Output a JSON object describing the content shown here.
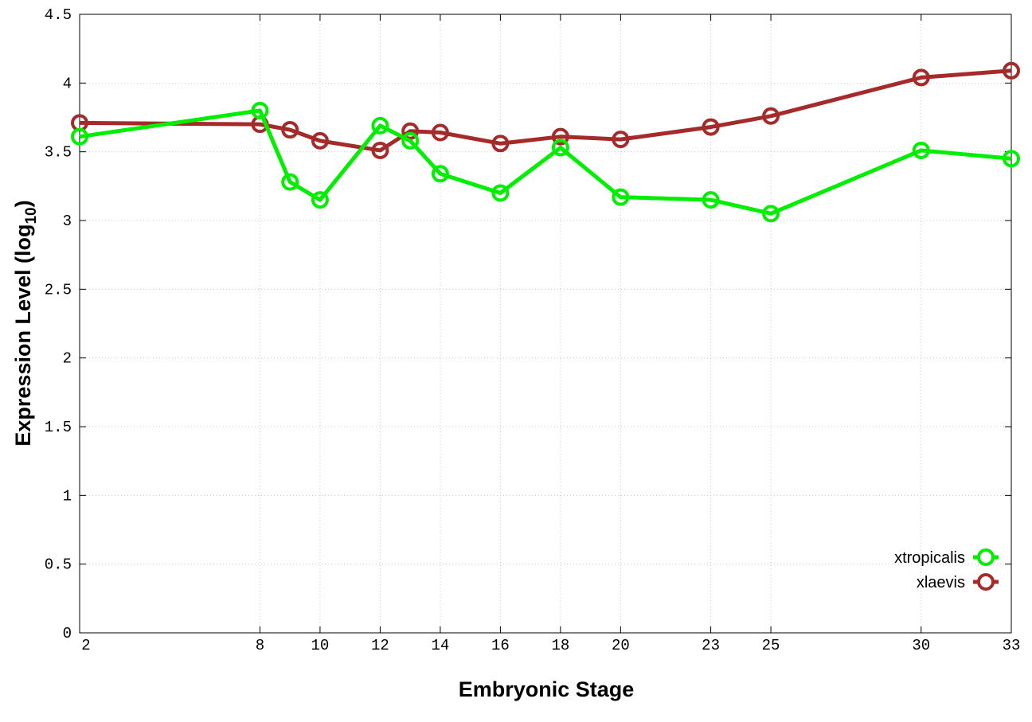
{
  "chart_data": {
    "type": "line",
    "xlabel": "Embryonic Stage",
    "ylabel_main": "Expression Level (log",
    "ylabel_sub": "10",
    "ylabel_end": ")",
    "xlim": [
      2,
      33
    ],
    "ylim": [
      0,
      4.5
    ],
    "x_ticks": [
      2,
      8,
      10,
      12,
      14,
      16,
      18,
      20,
      23,
      25,
      30,
      33
    ],
    "y_ticks": [
      "0",
      "0.5",
      "1",
      "1.5",
      "2",
      "2.5",
      "3",
      "3.5",
      "4",
      "4.5"
    ],
    "grid": true,
    "legend_position": "bottom-right",
    "x": [
      2,
      8,
      9,
      10,
      12,
      13,
      14,
      16,
      18,
      20,
      23,
      25,
      30,
      33
    ],
    "series": [
      {
        "name": "xtropicalis",
        "color": "#00ee00",
        "values": [
          3.61,
          3.8,
          3.28,
          3.15,
          3.69,
          3.58,
          3.34,
          3.2,
          3.53,
          3.17,
          3.15,
          3.05,
          3.51,
          3.45
        ]
      },
      {
        "name": "xlaevis",
        "color": "#a52a2a",
        "values": [
          3.71,
          3.7,
          3.66,
          3.58,
          3.51,
          3.65,
          3.64,
          3.56,
          3.61,
          3.59,
          3.68,
          3.76,
          4.04,
          4.09
        ]
      }
    ]
  }
}
